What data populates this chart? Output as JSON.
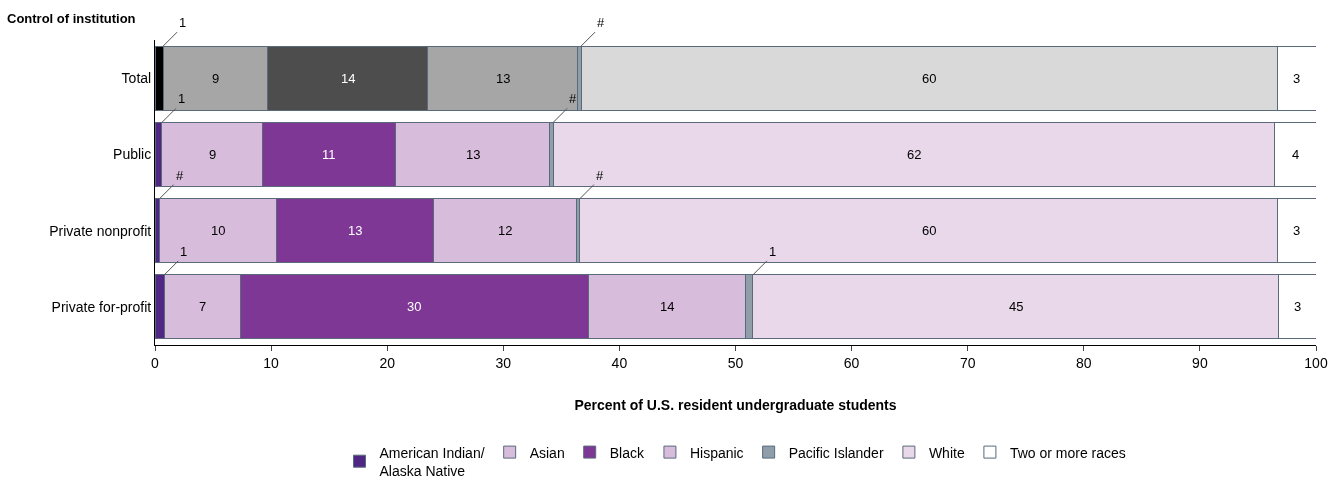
{
  "chart_data": {
    "type": "bar",
    "orientation": "horizontal",
    "stacked": true,
    "ylabel": "Control of institution",
    "xlabel": "Percent of U.S. resident undergraduate students",
    "categories": [
      "Total",
      "Public",
      "Private nonprofit",
      "Private for-profit"
    ],
    "xlim": [
      0,
      100
    ],
    "xticks": [
      0,
      10,
      20,
      30,
      40,
      50,
      60,
      70,
      80,
      90,
      100
    ],
    "legend": "bottom",
    "series": [
      {
        "name": "American Indian/\nAlaska Native",
        "color": "#4f2683",
        "colors": [
          "#000000",
          "#4f2683",
          "#4f2683",
          "#4f2683"
        ],
        "values": [
          0.7,
          0.6,
          0.4,
          0.8
        ],
        "value_labels": [
          "1",
          "1",
          "#",
          "1"
        ]
      },
      {
        "name": "Asian",
        "color": "#d8bcdc",
        "colors": [
          "#a6a6a6",
          "#d8bcdc",
          "#d8bcdc",
          "#d8bcdc"
        ],
        "values": [
          9,
          8.7,
          10.1,
          6.6
        ],
        "value_labels": [
          "9",
          "9",
          "10",
          "7"
        ]
      },
      {
        "name": "Black",
        "color": "#7f3796",
        "colors": [
          "#4d4d4d",
          "#7f3796",
          "#7f3796",
          "#7f3796"
        ],
        "values": [
          13.8,
          11.4,
          13.5,
          29.9
        ],
        "value_labels": [
          "14",
          "11",
          "13",
          "30"
        ]
      },
      {
        "name": "Hispanic",
        "color": "#d8bcdc",
        "colors": [
          "#a6a6a6",
          "#d8bcdc",
          "#d8bcdc",
          "#d8bcdc"
        ],
        "values": [
          12.9,
          13.3,
          12.3,
          13.6
        ],
        "value_labels": [
          "13",
          "13",
          "12",
          "14"
        ]
      },
      {
        "name": "Pacific Islander",
        "color": "#8f9ea8",
        "colors": [
          "#8f9ea8",
          "#8f9ea8",
          "#8f9ea8",
          "#8f9ea8"
        ],
        "values": [
          0.3,
          0.3,
          0.3,
          0.6
        ],
        "value_labels": [
          "#",
          "#",
          "#",
          "1"
        ]
      },
      {
        "name": "White",
        "color": "#e8d8ea",
        "colors": [
          "#d9d9d9",
          "#e8d8ea",
          "#e8d8ea",
          "#e8d8ea"
        ],
        "values": [
          60,
          62.1,
          60.1,
          45.3
        ],
        "value_labels": [
          "60",
          "62",
          "60",
          "45"
        ]
      },
      {
        "name": "Two or more races",
        "color": "#ffffff",
        "colors": [
          "#ffffff",
          "#ffffff",
          "#ffffff",
          "#ffffff"
        ],
        "values": [
          3.3,
          3.6,
          3.3,
          3.2
        ],
        "value_labels": [
          "3",
          "4",
          "3",
          "3"
        ]
      }
    ]
  }
}
